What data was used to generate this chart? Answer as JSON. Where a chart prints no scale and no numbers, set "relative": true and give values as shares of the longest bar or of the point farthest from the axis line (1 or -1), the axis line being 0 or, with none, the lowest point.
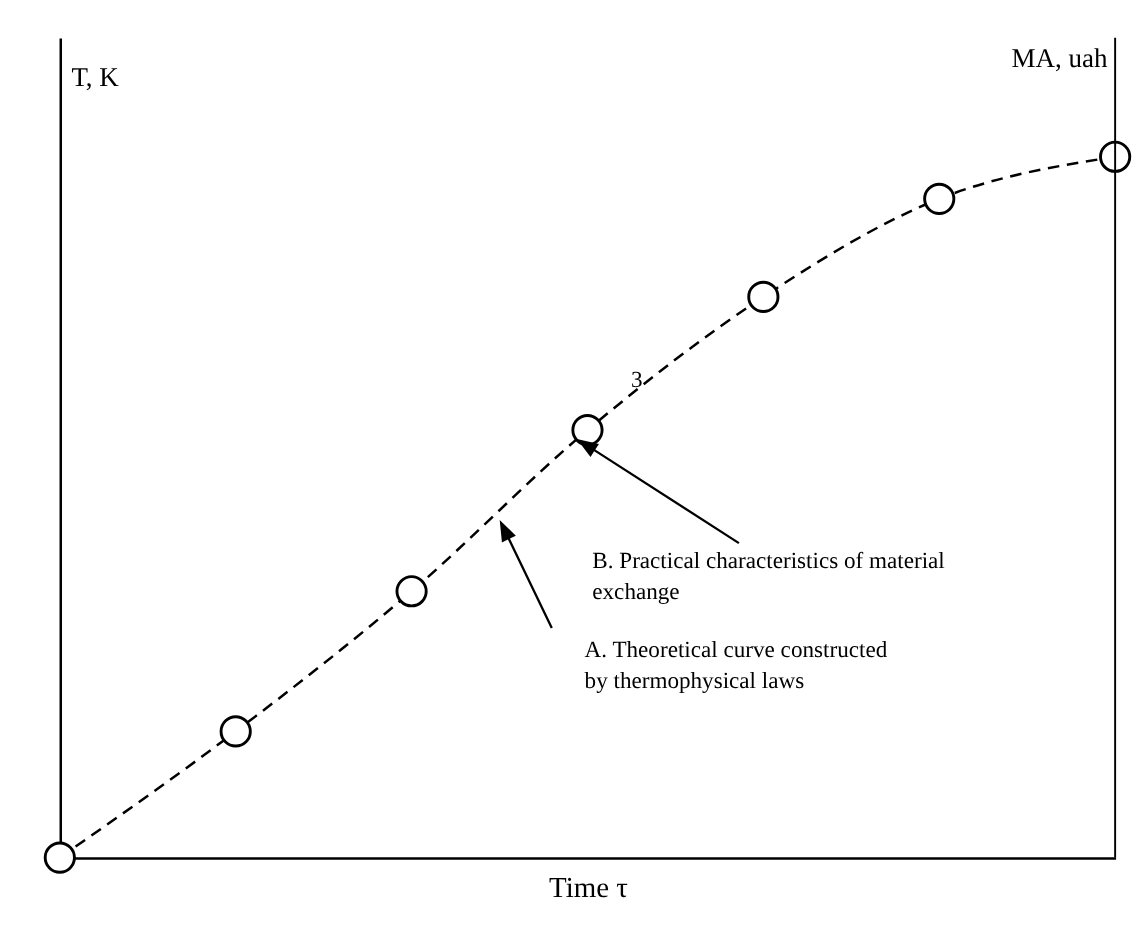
{
  "chart_data": {
    "type": "line",
    "relative": true,
    "xlabel": "Time τ",
    "ylabel": "T, K",
    "y2label": "MA, uah",
    "categories": [
      null,
      null,
      null,
      null,
      null,
      null,
      null
    ],
    "series": [
      {
        "color": "#000000",
        "values": [
          0,
          0.18,
          0.38,
          0.61,
          0.8,
          0.94,
          1
        ]
      }
    ],
    "marker": "circle",
    "line_style": "dashed",
    "grid": false,
    "legend": false,
    "annotations": [
      "3",
      "A. Theoretical curve constructed\nby thermophysical laws",
      "B. Practical characteristics of material\nexchange"
    ]
  }
}
